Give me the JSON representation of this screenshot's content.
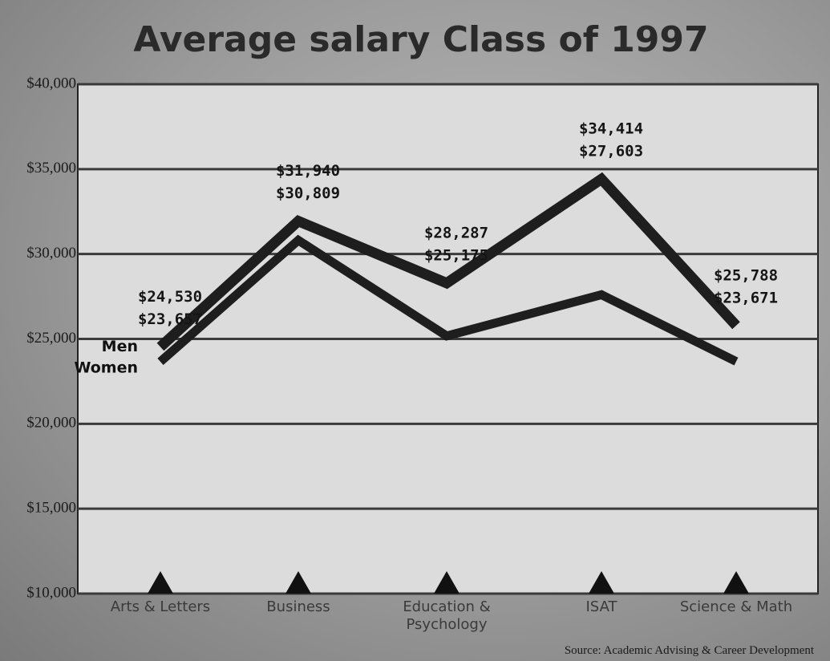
{
  "chart_data": {
    "type": "line",
    "title": "Average salary Class of 1997",
    "categories": [
      "Arts & Letters",
      "Business",
      "Education & Psychology",
      "ISAT",
      "Science & Math"
    ],
    "series": [
      {
        "name": "Men",
        "color": "#1e1e1e",
        "values": [
          24530,
          31940,
          28287,
          34414,
          25788
        ],
        "value_labels": [
          "$24,530",
          "$31,940",
          "$28,287",
          "$34,414",
          "$25,788"
        ]
      },
      {
        "name": "Women",
        "color": "#1e1e1e",
        "values": [
          23657,
          30809,
          25175,
          27603,
          23671
        ],
        "value_labels": [
          "$23,657",
          "$30,809",
          "$25,175",
          "$27,603",
          "$23,671"
        ]
      }
    ],
    "ylim": [
      10000,
      40000
    ],
    "yticks": [
      {
        "value": 10000,
        "label": "$10,000"
      },
      {
        "value": 15000,
        "label": "$15,000"
      },
      {
        "value": 20000,
        "label": "$20,000"
      },
      {
        "value": 25000,
        "label": "$25,000"
      },
      {
        "value": 30000,
        "label": "$30,000"
      },
      {
        "value": 35000,
        "label": "$35,000"
      },
      {
        "value": 40000,
        "label": "$40,000"
      }
    ],
    "grid": true,
    "source": "Source: Academic Advising & Career Development"
  }
}
